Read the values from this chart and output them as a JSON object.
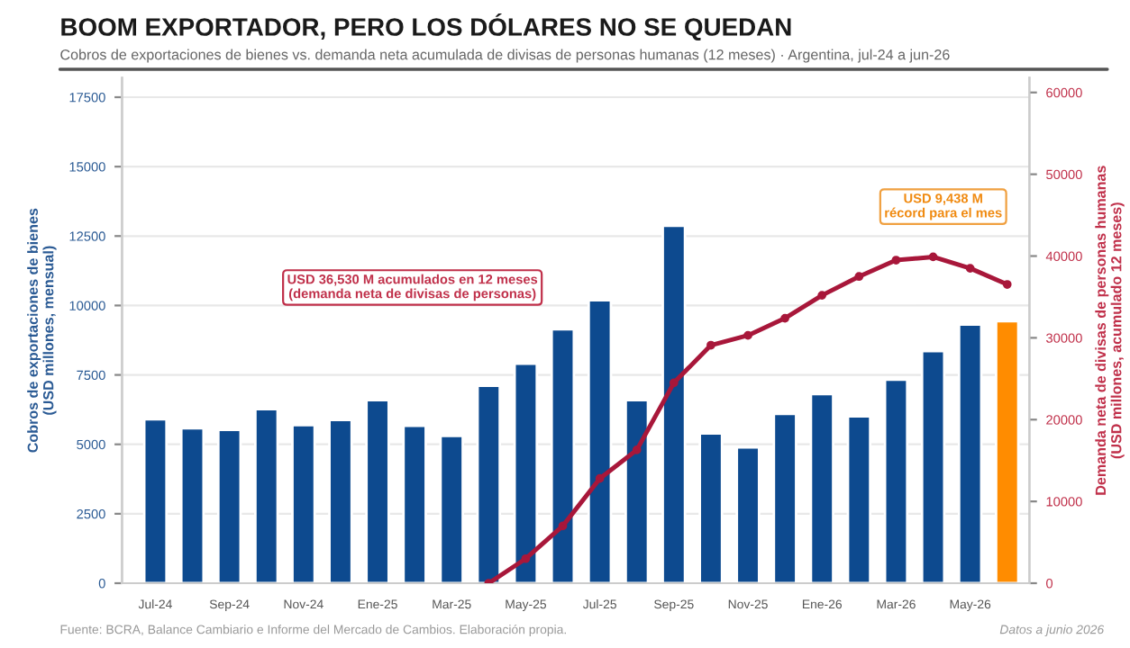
{
  "chart_data": {
    "type": "bar",
    "title": "BOOM EXPORTADOR, PERO LOS DÓLARES NO SE QUEDAN",
    "subtitle": "Cobros de exportaciones de bienes vs. demanda neta acumulada de divisas de personas humanas (12 meses) · Argentina, jul-24 a jun-26",
    "ylabel": "Cobros de exportaciones de bienes\n(USD millones, mensual)",
    "y2label": "Demanda neta de divisas de personas humanas\n(USD millones, acumulado 12 meses)",
    "categories": [
      "Jul-24",
      null,
      "Sep-24",
      null,
      "Nov-24",
      null,
      "Ene-25",
      null,
      "Mar-25",
      null,
      "May-25",
      null,
      "Jul-25",
      null,
      "Sep-25",
      null,
      "Nov-25",
      null,
      "Ene-26",
      null,
      "Mar-26",
      null,
      "May-26",
      null
    ],
    "series": [
      {
        "colors": [
          "#0d4a8f",
          "#0d4a8f",
          "#0d4a8f",
          "#0d4a8f",
          "#0d4a8f",
          "#0d4a8f",
          "#0d4a8f",
          "#0d4a8f",
          "#0d4a8f",
          "#0d4a8f",
          "#0d4a8f",
          "#0d4a8f",
          "#0d4a8f",
          "#0d4a8f",
          "#0d4a8f",
          "#0d4a8f",
          "#0d4a8f",
          "#0d4a8f",
          "#0d4a8f",
          "#0d4a8f",
          "#0d4a8f",
          "#0d4a8f",
          "#0d4a8f",
          "#ff8c00"
        ],
        "values": [
          5900,
          5580,
          5520,
          6270,
          5690,
          5880,
          6590,
          5670,
          5300,
          7110,
          7900,
          9140,
          10190,
          6590,
          12870,
          5390,
          4890,
          6100,
          6810,
          6010,
          7330,
          8360,
          9310,
          9438
        ]
      },
      {
        "type": "line",
        "axis": "y2",
        "color": "#a8173a",
        "marker": "circle",
        "line_style": "solid",
        "values": [
          null,
          null,
          null,
          null,
          null,
          null,
          null,
          null,
          null,
          0,
          3000,
          7000,
          12800,
          16300,
          24500,
          29100,
          30300,
          32400,
          35200,
          37500,
          39500,
          39900,
          38500,
          36530
        ]
      }
    ],
    "ylim": [
      0,
      18200
    ],
    "yticks": [
      0,
      2500,
      5000,
      7500,
      10000,
      12500,
      15000,
      17500
    ],
    "y2lim": [
      0,
      61800
    ],
    "y2ticks": [
      0,
      10000,
      20000,
      30000,
      40000,
      50000,
      60000
    ],
    "grid": "y",
    "legend": false,
    "annotations": [
      "USD 36,530 M acumulados en 12 meses\n(demanda neta de divisas de personas)",
      "USD 9,438 M\nrécord para el mes",
      "Fuente: BCRA, Balance Cambiario e Informe del Mercado de Cambios. Elaboración propia.",
      "Datos a junio 2026"
    ]
  }
}
